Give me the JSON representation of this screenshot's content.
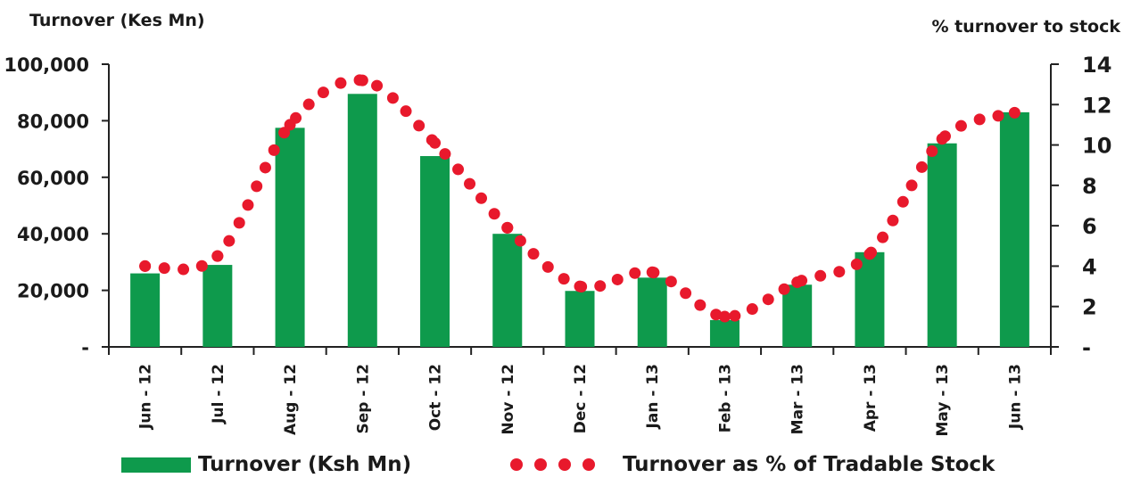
{
  "chart_data": {
    "type": "bar+line",
    "left_axis_title": "Turnover (Kes Mn)",
    "right_axis_title": "% turnover to stock",
    "categories": [
      "Jun - 12",
      "Jul - 12",
      "Aug - 12",
      "Sep - 12",
      "Oct - 12",
      "Nov - 12",
      "Dec - 12",
      "Jan - 13",
      "Feb - 13",
      "Mar - 13",
      "Apr - 13",
      "May - 13",
      "Jun - 13"
    ],
    "left_axis": {
      "ylim": [
        0,
        100000
      ],
      "ticks": [
        "-",
        "20,000",
        "40,000",
        "60,000",
        "80,000",
        "100,000"
      ]
    },
    "right_axis": {
      "ylim": [
        0,
        14
      ],
      "ticks": [
        "-",
        "2",
        "4",
        "6",
        "8",
        "10",
        "12",
        "14"
      ]
    },
    "series": [
      {
        "name": "Turnover (Ksh Mn)",
        "kind": "bar",
        "axis": "left",
        "color": "#0e9a4c",
        "values": [
          26000,
          29000,
          77500,
          89500,
          67500,
          40000,
          19800,
          24500,
          9500,
          22000,
          33500,
          72000,
          83000
        ]
      },
      {
        "name": "Turnover as % of Tradable Stock",
        "kind": "dotted-line",
        "axis": "right",
        "color": "#e8192c",
        "values": [
          4.0,
          4.5,
          11.0,
          13.2,
          10.1,
          5.9,
          3.0,
          3.7,
          1.5,
          3.2,
          4.6,
          10.3,
          11.6
        ]
      }
    ],
    "legend_position": "bottom",
    "grid": false
  }
}
